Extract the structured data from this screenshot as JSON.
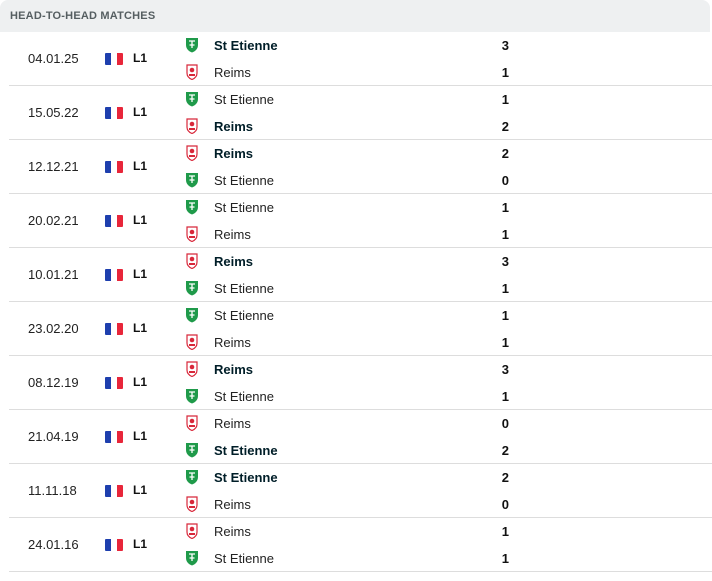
{
  "header": {
    "title": "HEAD-TO-HEAD MATCHES"
  },
  "colors": {
    "flag_blue": "#1e3fae",
    "flag_white": "#ffffff",
    "flag_red": "#e8263a",
    "stetienne_green": "#1f9a4a",
    "reims_red": "#d8273a"
  },
  "matches": [
    {
      "date": "04.01.25",
      "league": "L1",
      "home": {
        "name": "St Etienne",
        "logo": "st-etienne",
        "score": "3",
        "winner": true
      },
      "away": {
        "name": "Reims",
        "logo": "reims",
        "score": "1",
        "winner": false
      }
    },
    {
      "date": "15.05.22",
      "league": "L1",
      "home": {
        "name": "St Etienne",
        "logo": "st-etienne",
        "score": "1",
        "winner": false
      },
      "away": {
        "name": "Reims",
        "logo": "reims",
        "score": "2",
        "winner": true
      }
    },
    {
      "date": "12.12.21",
      "league": "L1",
      "home": {
        "name": "Reims",
        "logo": "reims",
        "score": "2",
        "winner": true
      },
      "away": {
        "name": "St Etienne",
        "logo": "st-etienne",
        "score": "0",
        "winner": false
      }
    },
    {
      "date": "20.02.21",
      "league": "L1",
      "home": {
        "name": "St Etienne",
        "logo": "st-etienne",
        "score": "1",
        "winner": false
      },
      "away": {
        "name": "Reims",
        "logo": "reims",
        "score": "1",
        "winner": false
      }
    },
    {
      "date": "10.01.21",
      "league": "L1",
      "home": {
        "name": "Reims",
        "logo": "reims",
        "score": "3",
        "winner": true
      },
      "away": {
        "name": "St Etienne",
        "logo": "st-etienne",
        "score": "1",
        "winner": false
      }
    },
    {
      "date": "23.02.20",
      "league": "L1",
      "home": {
        "name": "St Etienne",
        "logo": "st-etienne",
        "score": "1",
        "winner": false
      },
      "away": {
        "name": "Reims",
        "logo": "reims",
        "score": "1",
        "winner": false
      }
    },
    {
      "date": "08.12.19",
      "league": "L1",
      "home": {
        "name": "Reims",
        "logo": "reims",
        "score": "3",
        "winner": true
      },
      "away": {
        "name": "St Etienne",
        "logo": "st-etienne",
        "score": "1",
        "winner": false
      }
    },
    {
      "date": "21.04.19",
      "league": "L1",
      "home": {
        "name": "Reims",
        "logo": "reims",
        "score": "0",
        "winner": false
      },
      "away": {
        "name": "St Etienne",
        "logo": "st-etienne",
        "score": "2",
        "winner": true
      }
    },
    {
      "date": "11.11.18",
      "league": "L1",
      "home": {
        "name": "St Etienne",
        "logo": "st-etienne",
        "score": "2",
        "winner": true
      },
      "away": {
        "name": "Reims",
        "logo": "reims",
        "score": "0",
        "winner": false
      }
    },
    {
      "date": "24.01.16",
      "league": "L1",
      "home": {
        "name": "Reims",
        "logo": "reims",
        "score": "1",
        "winner": false
      },
      "away": {
        "name": "St Etienne",
        "logo": "st-etienne",
        "score": "1",
        "winner": false
      }
    }
  ]
}
